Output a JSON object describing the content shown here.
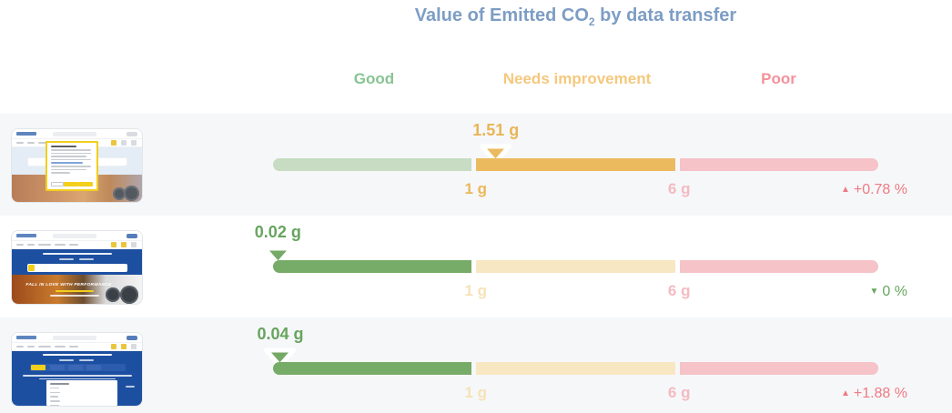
{
  "title": {
    "prefix": "Value of Emitted CO",
    "subscript": "2",
    "suffix": " by data transfer"
  },
  "colors": {
    "title": "#7d9dc4",
    "good_bar": "#77ab68",
    "good_bar_faded": "#c7dcc2",
    "good_text": "#67a45e",
    "good_header": "#87c493",
    "warn_bar": "#ecba5e",
    "warn_bar_faded": "#f8e7c3",
    "warn_text": "#e9b557",
    "warn_header": "#f5c87d",
    "poor_bar_faded": "#f5c3c8",
    "poor_header": "#f2929b",
    "poor_tick": "#f4bac1",
    "change_up": "#ee7b82",
    "change_down": "#68a760",
    "row_stripe": "#f6f7f9"
  },
  "chart_data": {
    "type": "bar",
    "subtype": "bullet-gauge-rows",
    "title": "Value of Emitted CO2 by data transfer",
    "unit": "g",
    "zones": [
      {
        "label": "Good",
        "min": 0,
        "max": 1
      },
      {
        "label": "Needs improvement",
        "min": 1,
        "max": 6
      },
      {
        "label": "Poor",
        "min": 6,
        "max": null
      }
    ],
    "ticks": [
      {
        "label": "1 g",
        "value": 1
      },
      {
        "label": "6 g",
        "value": 6
      }
    ],
    "rows": [
      {
        "value": 1.51,
        "value_label": "1.51 g",
        "zone": "Needs improvement",
        "change_label": "+0.78 %",
        "trend": "up",
        "trend_icon": "▲",
        "marker_pct": 36.8
      },
      {
        "value": 0.02,
        "value_label": "0.02 g",
        "zone": "Good",
        "change_label": "0 %",
        "trend": "down",
        "trend_icon": "▼",
        "marker_pct": 0.8
      },
      {
        "value": 0.04,
        "value_label": "0.04 g",
        "zone": "Good",
        "change_label": "+1.88 %",
        "trend": "up",
        "trend_icon": "▲",
        "marker_pct": 1.2
      }
    ]
  },
  "thumbnails": {
    "row1": {
      "kind": "cookie-consent-page"
    },
    "row2": {
      "kind": "homepage-hero",
      "slogan": "FALL IN LOVE WITH PERFORMANCE"
    },
    "row3": {
      "kind": "tire-finder-dropdown"
    }
  }
}
